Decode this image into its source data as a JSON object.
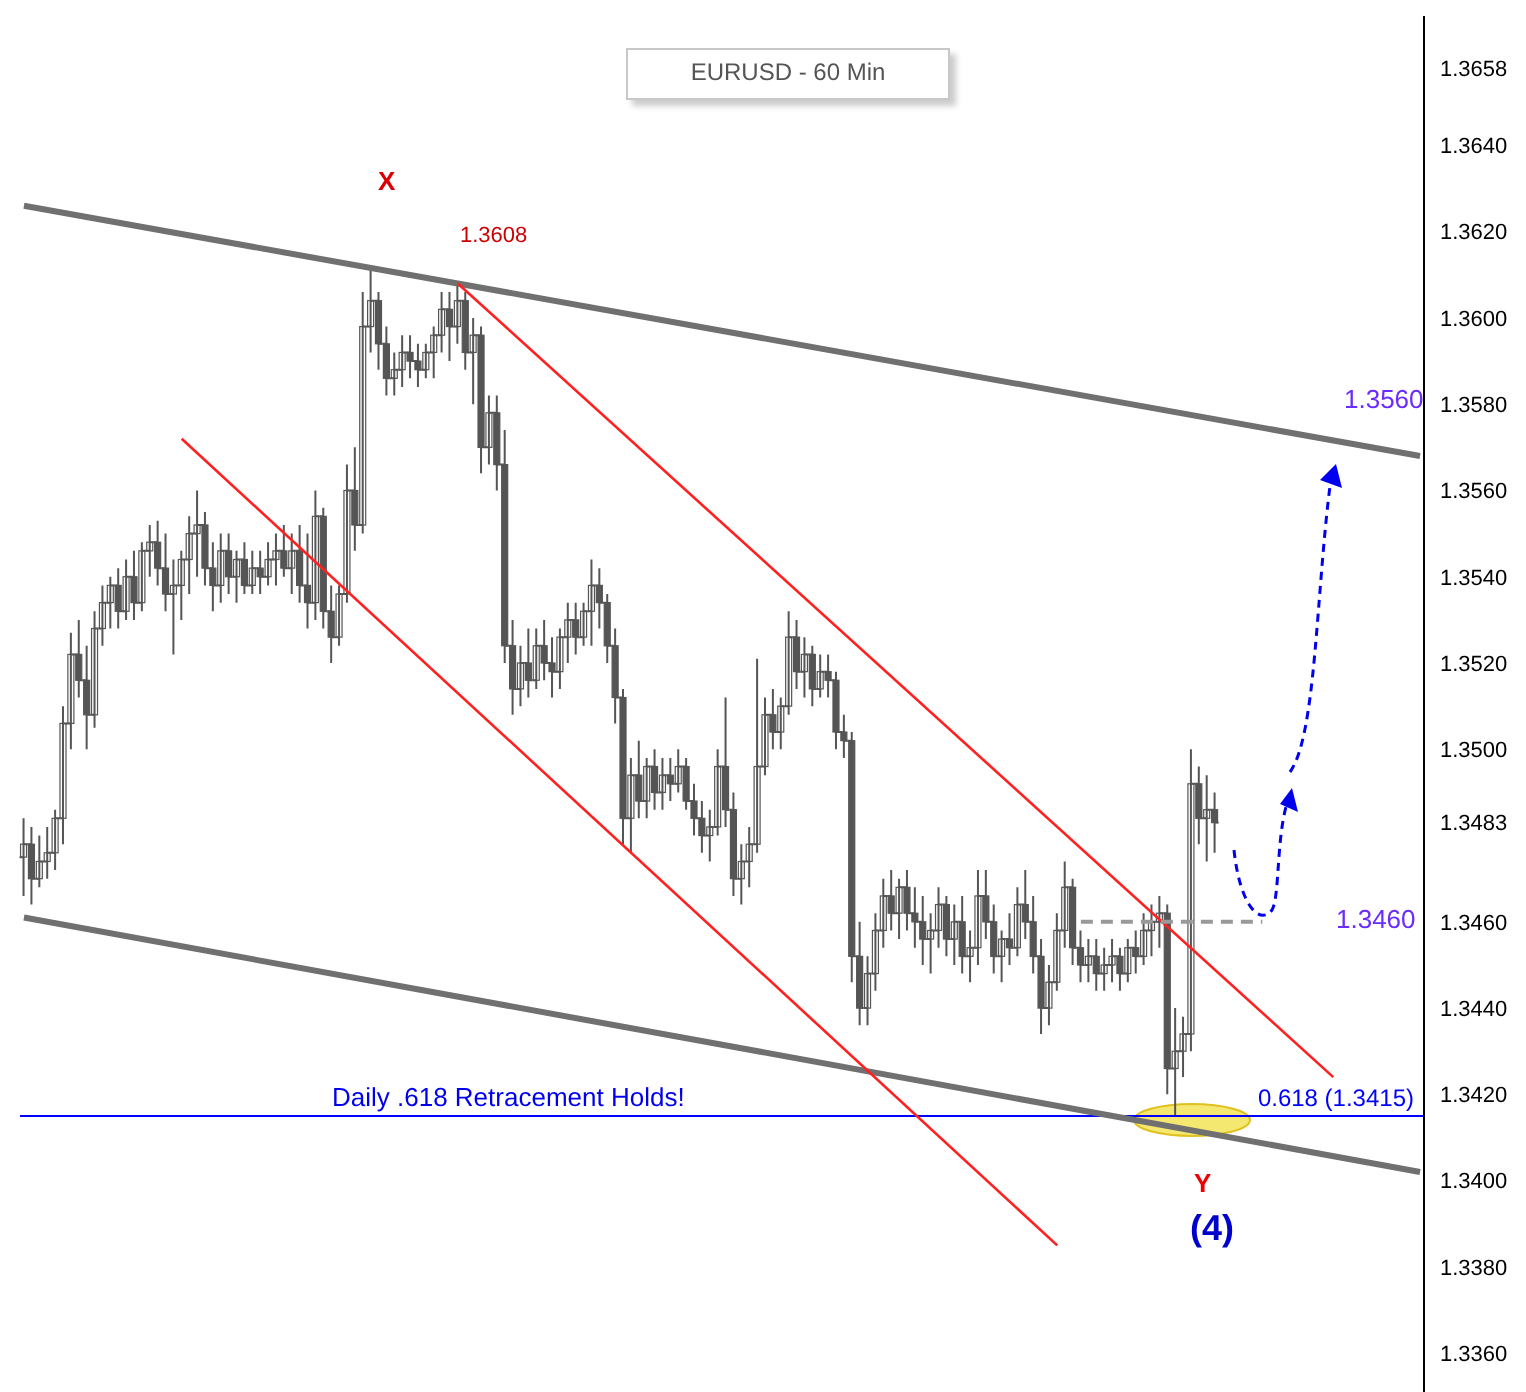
{
  "chart_data": {
    "type": "candlestick",
    "title": "EURUSD - 60 Min",
    "color": "#555555",
    "categories": [
      null,
      null,
      null,
      null,
      null,
      null,
      null,
      null,
      null,
      null,
      null,
      null,
      null,
      null,
      null,
      null,
      null,
      null,
      null,
      null,
      null,
      null,
      null,
      null,
      null,
      null,
      null,
      null,
      null,
      null,
      null,
      null,
      null,
      null,
      null,
      null,
      null,
      null,
      null,
      null,
      null,
      null,
      null,
      null,
      null,
      null,
      null,
      null,
      null,
      null,
      null,
      null,
      null,
      null,
      null,
      null,
      null,
      null,
      null,
      null,
      null,
      null,
      null,
      null,
      null,
      null,
      null,
      null,
      null,
      null,
      null,
      null,
      null,
      null,
      null,
      null,
      null,
      null,
      null,
      null,
      null,
      null,
      null,
      null,
      null,
      null,
      null,
      null,
      null,
      null,
      null,
      null,
      null,
      null,
      null,
      null,
      null,
      null,
      null,
      null,
      null,
      null,
      null,
      null,
      null,
      null,
      null,
      null,
      null,
      null,
      null,
      null,
      null,
      null,
      null,
      null,
      null,
      null,
      null,
      null,
      null,
      null,
      null,
      null,
      null,
      null,
      null,
      null,
      null,
      null,
      null,
      null,
      null,
      null,
      null,
      null,
      null,
      null,
      null,
      null,
      null,
      null,
      null,
      null,
      null,
      null,
      null,
      null,
      null,
      null,
      null,
      null,
      null,
      null,
      null,
      null,
      null,
      null,
      null,
      null,
      null,
      null,
      null,
      null,
      null,
      null,
      null,
      null,
      null,
      null,
      null,
      null,
      null,
      null,
      null,
      null,
      null,
      null
    ],
    "ohlc": [
      [
        1.3475,
        1.3484,
        1.3466,
        1.3478
      ],
      [
        1.3478,
        1.3482,
        1.3464,
        1.347
      ],
      [
        1.347,
        1.348,
        1.3468,
        1.3474
      ],
      [
        1.3474,
        1.3482,
        1.347,
        1.3476
      ],
      [
        1.3476,
        1.3486,
        1.3472,
        1.3484
      ],
      [
        1.3484,
        1.351,
        1.3478,
        1.3506
      ],
      [
        1.3506,
        1.3527,
        1.35,
        1.3522
      ],
      [
        1.3522,
        1.353,
        1.3512,
        1.3516
      ],
      [
        1.3516,
        1.3524,
        1.35,
        1.3508
      ],
      [
        1.3508,
        1.3532,
        1.3505,
        1.3528
      ],
      [
        1.3528,
        1.3538,
        1.3524,
        1.3534
      ],
      [
        1.3534,
        1.354,
        1.3528,
        1.3538
      ],
      [
        1.3538,
        1.3542,
        1.3528,
        1.3532
      ],
      [
        1.3532,
        1.3544,
        1.353,
        1.354
      ],
      [
        1.354,
        1.3546,
        1.353,
        1.3534
      ],
      [
        1.3534,
        1.3548,
        1.3532,
        1.3546
      ],
      [
        1.3546,
        1.3552,
        1.354,
        1.3548
      ],
      [
        1.3548,
        1.3553,
        1.3538,
        1.3542
      ],
      [
        1.3542,
        1.355,
        1.3532,
        1.3536
      ],
      [
        1.3536,
        1.3544,
        1.3522,
        1.3538
      ],
      [
        1.3538,
        1.3546,
        1.353,
        1.3544
      ],
      [
        1.3544,
        1.3554,
        1.3536,
        1.355
      ],
      [
        1.355,
        1.356,
        1.354,
        1.3552
      ],
      [
        1.3552,
        1.3555,
        1.3538,
        1.3542
      ],
      [
        1.3542,
        1.3548,
        1.3532,
        1.3538
      ],
      [
        1.3538,
        1.355,
        1.3534,
        1.3546
      ],
      [
        1.3546,
        1.355,
        1.3536,
        1.354
      ],
      [
        1.354,
        1.3546,
        1.3534,
        1.3544
      ],
      [
        1.3544,
        1.3548,
        1.3536,
        1.3538
      ],
      [
        1.3538,
        1.3546,
        1.3536,
        1.3542
      ],
      [
        1.3542,
        1.3546,
        1.3536,
        1.354
      ],
      [
        1.354,
        1.3548,
        1.3538,
        1.3544
      ],
      [
        1.3544,
        1.355,
        1.3538,
        1.3546
      ],
      [
        1.3546,
        1.3552,
        1.354,
        1.3542
      ],
      [
        1.3542,
        1.355,
        1.3536,
        1.3546
      ],
      [
        1.3546,
        1.3552,
        1.3534,
        1.3538
      ],
      [
        1.3538,
        1.355,
        1.3528,
        1.3534
      ],
      [
        1.3534,
        1.356,
        1.353,
        1.3554
      ],
      [
        1.3554,
        1.3556,
        1.3528,
        1.3532
      ],
      [
        1.3532,
        1.3538,
        1.352,
        1.3526
      ],
      [
        1.3526,
        1.3538,
        1.3524,
        1.3536
      ],
      [
        1.3536,
        1.3566,
        1.3534,
        1.356
      ],
      [
        1.356,
        1.357,
        1.3546,
        1.3552
      ],
      [
        1.3552,
        1.3606,
        1.355,
        1.3598
      ],
      [
        1.3598,
        1.3611,
        1.3592,
        1.3604
      ],
      [
        1.3604,
        1.3606,
        1.3588,
        1.3594
      ],
      [
        1.3594,
        1.3598,
        1.3582,
        1.3586
      ],
      [
        1.3586,
        1.3592,
        1.3582,
        1.3588
      ],
      [
        1.3588,
        1.3596,
        1.3584,
        1.3592
      ],
      [
        1.3592,
        1.3596,
        1.3586,
        1.359
      ],
      [
        1.359,
        1.3594,
        1.3584,
        1.3588
      ],
      [
        1.3588,
        1.3594,
        1.3586,
        1.3592
      ],
      [
        1.3592,
        1.3598,
        1.3586,
        1.3596
      ],
      [
        1.3596,
        1.3606,
        1.3592,
        1.3602
      ],
      [
        1.3602,
        1.3606,
        1.359,
        1.3598
      ],
      [
        1.3598,
        1.3608,
        1.3594,
        1.3604
      ],
      [
        1.3604,
        1.3606,
        1.3588,
        1.3592
      ],
      [
        1.3592,
        1.36,
        1.358,
        1.3596
      ],
      [
        1.3596,
        1.3598,
        1.3564,
        1.357
      ],
      [
        1.357,
        1.3582,
        1.3566,
        1.3578
      ],
      [
        1.3578,
        1.3582,
        1.356,
        1.3566
      ],
      [
        1.3566,
        1.3574,
        1.352,
        1.3524
      ],
      [
        1.3524,
        1.353,
        1.3508,
        1.3514
      ],
      [
        1.3514,
        1.3524,
        1.351,
        1.352
      ],
      [
        1.352,
        1.3528,
        1.3512,
        1.3516
      ],
      [
        1.3516,
        1.3528,
        1.3514,
        1.3524
      ],
      [
        1.3524,
        1.353,
        1.3516,
        1.352
      ],
      [
        1.352,
        1.3526,
        1.3512,
        1.3518
      ],
      [
        1.3518,
        1.3528,
        1.3514,
        1.3526
      ],
      [
        1.3526,
        1.3534,
        1.352,
        1.353
      ],
      [
        1.353,
        1.3534,
        1.3522,
        1.3526
      ],
      [
        1.3526,
        1.3534,
        1.3524,
        1.3532
      ],
      [
        1.3532,
        1.3544,
        1.3524,
        1.3538
      ],
      [
        1.3538,
        1.3542,
        1.3528,
        1.3534
      ],
      [
        1.3534,
        1.3536,
        1.352,
        1.3524
      ],
      [
        1.3524,
        1.3528,
        1.3506,
        1.3512
      ],
      [
        1.3512,
        1.3514,
        1.3478,
        1.3484
      ],
      [
        1.3484,
        1.3498,
        1.3476,
        1.3494
      ],
      [
        1.3494,
        1.3502,
        1.3484,
        1.3488
      ],
      [
        1.3488,
        1.3498,
        1.3484,
        1.3496
      ],
      [
        1.3496,
        1.35,
        1.3486,
        1.349
      ],
      [
        1.349,
        1.3498,
        1.3486,
        1.3494
      ],
      [
        1.3494,
        1.3498,
        1.3488,
        1.3492
      ],
      [
        1.3492,
        1.35,
        1.349,
        1.3496
      ],
      [
        1.3496,
        1.3498,
        1.3486,
        1.3488
      ],
      [
        1.3488,
        1.3492,
        1.348,
        1.3484
      ],
      [
        1.3484,
        1.3488,
        1.3476,
        1.348
      ],
      [
        1.348,
        1.3486,
        1.3474,
        1.3482
      ],
      [
        1.3482,
        1.35,
        1.348,
        1.3496
      ],
      [
        1.3496,
        1.3512,
        1.3482,
        1.3486
      ],
      [
        1.3486,
        1.349,
        1.3466,
        1.347
      ],
      [
        1.347,
        1.3478,
        1.3464,
        1.3474
      ],
      [
        1.3474,
        1.3482,
        1.3468,
        1.3478
      ],
      [
        1.3478,
        1.3521,
        1.3476,
        1.3496
      ],
      [
        1.3496,
        1.3512,
        1.3494,
        1.3508
      ],
      [
        1.3508,
        1.3514,
        1.35,
        1.3504
      ],
      [
        1.3504,
        1.3512,
        1.35,
        1.351
      ],
      [
        1.351,
        1.3532,
        1.3508,
        1.3526
      ],
      [
        1.3526,
        1.353,
        1.3514,
        1.3518
      ],
      [
        1.3518,
        1.3526,
        1.3512,
        1.3522
      ],
      [
        1.3522,
        1.3524,
        1.351,
        1.3514
      ],
      [
        1.3514,
        1.3522,
        1.3512,
        1.3518
      ],
      [
        1.3518,
        1.3522,
        1.3512,
        1.3516
      ],
      [
        1.3516,
        1.3518,
        1.35,
        1.3504
      ],
      [
        1.3504,
        1.3508,
        1.3498,
        1.3502
      ],
      [
        1.3502,
        1.3504,
        1.3446,
        1.3452
      ],
      [
        1.3452,
        1.346,
        1.3436,
        1.344
      ],
      [
        1.344,
        1.3452,
        1.3436,
        1.3448
      ],
      [
        1.3448,
        1.3462,
        1.3444,
        1.3458
      ],
      [
        1.3458,
        1.347,
        1.3454,
        1.3466
      ],
      [
        1.3466,
        1.3472,
        1.3458,
        1.3462
      ],
      [
        1.3462,
        1.347,
        1.3456,
        1.3468
      ],
      [
        1.3468,
        1.3472,
        1.3458,
        1.3462
      ],
      [
        1.3462,
        1.3468,
        1.3454,
        1.346
      ],
      [
        1.346,
        1.3466,
        1.345,
        1.3456
      ],
      [
        1.3456,
        1.3462,
        1.3448,
        1.3458
      ],
      [
        1.3458,
        1.3468,
        1.3454,
        1.3464
      ],
      [
        1.3464,
        1.3466,
        1.3452,
        1.3456
      ],
      [
        1.3456,
        1.3464,
        1.345,
        1.346
      ],
      [
        1.346,
        1.3466,
        1.3448,
        1.3452
      ],
      [
        1.3452,
        1.3458,
        1.3446,
        1.3454
      ],
      [
        1.3454,
        1.3472,
        1.345,
        1.3466
      ],
      [
        1.3466,
        1.3472,
        1.3456,
        1.346
      ],
      [
        1.346,
        1.3464,
        1.3448,
        1.3452
      ],
      [
        1.3452,
        1.3458,
        1.3446,
        1.3456
      ],
      [
        1.3456,
        1.3462,
        1.345,
        1.3454
      ],
      [
        1.3454,
        1.3468,
        1.3452,
        1.3464
      ],
      [
        1.3464,
        1.3472,
        1.3456,
        1.346
      ],
      [
        1.346,
        1.3466,
        1.3448,
        1.3452
      ],
      [
        1.3452,
        1.3456,
        1.3434,
        1.344
      ],
      [
        1.344,
        1.345,
        1.3436,
        1.3446
      ],
      [
        1.3446,
        1.3462,
        1.3444,
        1.3458
      ],
      [
        1.3458,
        1.3474,
        1.3454,
        1.3468
      ],
      [
        1.3468,
        1.347,
        1.345,
        1.3454
      ],
      [
        1.3454,
        1.3458,
        1.3446,
        1.345
      ],
      [
        1.345,
        1.3456,
        1.3446,
        1.3452
      ],
      [
        1.3452,
        1.3456,
        1.3444,
        1.3448
      ],
      [
        1.3448,
        1.3454,
        1.3444,
        1.345
      ],
      [
        1.345,
        1.3456,
        1.3446,
        1.3452
      ],
      [
        1.3452,
        1.3454,
        1.3444,
        1.3448
      ],
      [
        1.3448,
        1.3456,
        1.3446,
        1.3454
      ],
      [
        1.3454,
        1.3458,
        1.3448,
        1.3452
      ],
      [
        1.3452,
        1.3462,
        1.345,
        1.3458
      ],
      [
        1.3458,
        1.3464,
        1.3452,
        1.346
      ],
      [
        1.346,
        1.3466,
        1.3454,
        1.3462
      ],
      [
        1.3462,
        1.3464,
        1.342,
        1.3426
      ],
      [
        1.3426,
        1.344,
        1.3415,
        1.343
      ],
      [
        1.343,
        1.3438,
        1.3424,
        1.3434
      ],
      [
        1.3434,
        1.35,
        1.343,
        1.3492
      ],
      [
        1.3492,
        1.3496,
        1.3478,
        1.3484
      ],
      [
        1.3484,
        1.3494,
        1.3474,
        1.3486
      ],
      [
        1.3486,
        1.349,
        1.3476,
        1.3483
      ],
      null,
      null,
      null,
      null,
      null,
      null,
      null,
      null,
      null,
      null,
      null,
      null,
      null,
      null,
      null,
      null,
      null,
      null,
      null,
      null,
      null,
      null,
      null,
      null,
      null,
      null
    ],
    "series": [
      {
        "type": "line",
        "color": "#707070",
        "values": [
          1.3626,
          null,
          null,
          null,
          null,
          null,
          null,
          null,
          null,
          null,
          null,
          null,
          null,
          null,
          null,
          null,
          null,
          null,
          null,
          null,
          null,
          null,
          null,
          null,
          null,
          null,
          null,
          null,
          null,
          null,
          null,
          null,
          null,
          null,
          null,
          null,
          null,
          null,
          null,
          null,
          null,
          null,
          null,
          null,
          null,
          null,
          null,
          null,
          null,
          null,
          null,
          null,
          null,
          null,
          null,
          null,
          null,
          null,
          null,
          null,
          null,
          null,
          null,
          null,
          null,
          null,
          null,
          null,
          null,
          null,
          null,
          null,
          null,
          null,
          null,
          null,
          null,
          null,
          null,
          null,
          null,
          null,
          null,
          null,
          null,
          null,
          null,
          null,
          null,
          null,
          null,
          null,
          null,
          null,
          null,
          null,
          null,
          null,
          null,
          null,
          null,
          null,
          null,
          null,
          null,
          null,
          null,
          null,
          null,
          null,
          null,
          null,
          null,
          null,
          null,
          null,
          null,
          null,
          null,
          null,
          null,
          null,
          null,
          null,
          null,
          null,
          null,
          null,
          null,
          null,
          null,
          null,
          null,
          null,
          null,
          null,
          null,
          null,
          null,
          null,
          null,
          null,
          null,
          null,
          null,
          null,
          null,
          null,
          null,
          null,
          null,
          null,
          null,
          null,
          null,
          null,
          null,
          null,
          null,
          null,
          null,
          null,
          null,
          null,
          null,
          null,
          null,
          null,
          null,
          null,
          null,
          null,
          null,
          null,
          null,
          null,
          null,
          1.3568
        ]
      },
      {
        "type": "line",
        "color": "#707070",
        "values": [
          1.3461,
          null,
          null,
          null,
          null,
          null,
          null,
          null,
          null,
          null,
          null,
          null,
          null,
          null,
          null,
          null,
          null,
          null,
          null,
          null,
          null,
          null,
          null,
          null,
          null,
          null,
          null,
          null,
          null,
          null,
          null,
          null,
          null,
          null,
          null,
          null,
          null,
          null,
          null,
          null,
          null,
          null,
          null,
          null,
          null,
          null,
          null,
          null,
          null,
          null,
          null,
          null,
          null,
          null,
          null,
          null,
          null,
          null,
          null,
          null,
          null,
          null,
          null,
          null,
          null,
          null,
          null,
          null,
          null,
          null,
          null,
          null,
          null,
          null,
          null,
          null,
          null,
          null,
          null,
          null,
          null,
          null,
          null,
          null,
          null,
          null,
          null,
          null,
          null,
          null,
          null,
          null,
          null,
          null,
          null,
          null,
          null,
          null,
          null,
          null,
          null,
          null,
          null,
          null,
          null,
          null,
          null,
          null,
          null,
          null,
          null,
          null,
          null,
          null,
          null,
          null,
          null,
          null,
          null,
          null,
          null,
          null,
          null,
          null,
          null,
          null,
          null,
          null,
          null,
          null,
          null,
          null,
          null,
          null,
          null,
          null,
          null,
          null,
          null,
          null,
          null,
          null,
          null,
          null,
          null,
          null,
          null,
          null,
          null,
          null,
          null,
          null,
          null,
          null,
          null,
          null,
          null,
          null,
          null,
          null,
          null,
          null,
          null,
          null,
          null,
          null,
          null,
          null,
          null,
          null,
          null,
          null,
          null,
          null,
          null,
          null,
          null,
          1.3402
        ]
      },
      {
        "type": "line",
        "color": "#ff2020",
        "values": [
          null,
          null,
          null,
          null,
          null,
          null,
          null,
          null,
          null,
          null,
          null,
          null,
          null,
          null,
          null,
          null,
          null,
          null,
          null,
          null,
          null,
          null,
          null,
          null,
          null,
          null,
          null,
          null,
          null,
          null,
          null,
          null,
          null,
          null,
          null,
          null,
          null,
          null,
          null,
          null,
          null,
          null,
          null,
          null,
          null,
          null,
          null,
          null,
          null,
          null,
          null,
          null,
          null,
          null,
          null,
          1.3608,
          null,
          null,
          null,
          null,
          null,
          null,
          null,
          null,
          null,
          null,
          null,
          null,
          null,
          null,
          null,
          null,
          null,
          null,
          null,
          null,
          null,
          null,
          null,
          null,
          null,
          null,
          null,
          null,
          null,
          null,
          null,
          null,
          null,
          null,
          null,
          null,
          null,
          null,
          null,
          null,
          null,
          null,
          null,
          null,
          null,
          null,
          null,
          null,
          null,
          null,
          null,
          null,
          null,
          null,
          null,
          null,
          null,
          null,
          null,
          null,
          null,
          null,
          null,
          null,
          null,
          null,
          null,
          null,
          null,
          null,
          null,
          null,
          null,
          null,
          null,
          null,
          null,
          null,
          null,
          null,
          null,
          null,
          null,
          null,
          null,
          null,
          null,
          null,
          null,
          null,
          null,
          null,
          null,
          null,
          null,
          null,
          null,
          null,
          null,
          null,
          null,
          null,
          null,
          null,
          null,
          null,
          null,
          null,
          null,
          null,
          1.3424,
          null,
          null,
          null,
          null,
          null,
          null,
          null,
          null,
          null,
          null,
          null
        ]
      },
      {
        "type": "line",
        "color": "#ff2020",
        "values": [
          null,
          null,
          null,
          null,
          null,
          null,
          null,
          null,
          null,
          null,
          null,
          null,
          null,
          null,
          null,
          null,
          null,
          null,
          null,
          null,
          1.3572,
          null,
          null,
          null,
          null,
          null,
          null,
          null,
          null,
          null,
          null,
          null,
          null,
          null,
          null,
          null,
          null,
          null,
          null,
          null,
          null,
          null,
          null,
          null,
          null,
          null,
          null,
          null,
          null,
          null,
          null,
          null,
          null,
          null,
          null,
          null,
          null,
          null,
          null,
          null,
          null,
          null,
          null,
          null,
          null,
          null,
          null,
          null,
          null,
          null,
          null,
          null,
          null,
          null,
          null,
          null,
          null,
          null,
          null,
          null,
          null,
          null,
          null,
          null,
          null,
          null,
          null,
          null,
          null,
          null,
          null,
          null,
          null,
          null,
          null,
          null,
          null,
          null,
          null,
          null,
          null,
          null,
          null,
          null,
          null,
          null,
          null,
          null,
          null,
          null,
          null,
          null,
          null,
          null,
          null,
          null,
          null,
          null,
          null,
          null,
          null,
          null,
          null,
          null,
          null,
          null,
          null,
          null,
          null,
          null,
          null,
          1.3385,
          null,
          null,
          null,
          null,
          null,
          null,
          null,
          null,
          null,
          null,
          null,
          null,
          null,
          null,
          null,
          null,
          null,
          null,
          null,
          null,
          null,
          null,
          null,
          null,
          null,
          null,
          null,
          null,
          null,
          null,
          null,
          null,
          null,
          null,
          null,
          null,
          null,
          null,
          null,
          null,
          null,
          null,
          null,
          null,
          null,
          null
        ]
      },
      {
        "type": "line",
        "color": "#999999",
        "line_style": "dashed",
        "values": [
          null,
          null,
          null,
          null,
          null,
          null,
          null,
          null,
          null,
          null,
          null,
          null,
          null,
          null,
          null,
          null,
          null,
          null,
          null,
          null,
          null,
          null,
          null,
          null,
          null,
          null,
          null,
          null,
          null,
          null,
          null,
          null,
          null,
          null,
          null,
          null,
          null,
          null,
          null,
          null,
          null,
          null,
          null,
          null,
          null,
          null,
          null,
          null,
          null,
          null,
          null,
          null,
          null,
          null,
          null,
          null,
          null,
          null,
          null,
          null,
          null,
          null,
          null,
          null,
          null,
          null,
          null,
          null,
          null,
          null,
          null,
          null,
          null,
          null,
          null,
          null,
          null,
          null,
          null,
          null,
          null,
          null,
          null,
          null,
          null,
          null,
          null,
          null,
          null,
          null,
          null,
          null,
          null,
          null,
          null,
          null,
          null,
          null,
          null,
          null,
          null,
          null,
          null,
          null,
          null,
          null,
          null,
          null,
          null,
          null,
          null,
          null,
          null,
          null,
          null,
          null,
          null,
          null,
          null,
          null,
          null,
          null,
          null,
          null,
          null,
          null,
          null,
          null,
          null,
          null,
          null,
          null,
          null,
          null,
          1.346,
          null,
          null,
          null,
          null,
          null,
          null,
          null,
          null,
          null,
          null,
          null,
          null,
          null,
          null,
          null,
          null,
          null,
          null,
          null,
          null,
          null,
          null,
          1.346,
          null,
          null,
          null,
          null,
          null,
          null,
          null,
          null,
          null,
          null,
          null,
          null,
          null,
          null,
          null,
          null,
          null,
          null,
          null,
          null
        ]
      }
    ],
    "ylim": [
      1.3351,
      1.367
    ],
    "yticks": [
      1.3658,
      {
        "value": 1.364,
        "label": "1.3640"
      },
      {
        "value": 1.362,
        "label": "1.3620"
      },
      {
        "value": 1.36,
        "label": "1.3600"
      },
      {
        "value": 1.358,
        "label": "1.3580"
      },
      {
        "value": 1.356,
        "label": "1.3560"
      },
      {
        "value": 1.354,
        "label": "1.3540"
      },
      {
        "value": 1.352,
        "label": "1.3520"
      },
      {
        "value": 1.35,
        "label": "1.3500"
      },
      1.3483,
      {
        "value": 1.346,
        "label": "1.3460"
      },
      {
        "value": 1.344,
        "label": "1.3440"
      },
      {
        "value": 1.342,
        "label": "1.3420"
      },
      {
        "value": 1.34,
        "label": "1.3400"
      },
      {
        "value": 1.338,
        "label": "1.3380"
      },
      {
        "value": 1.336,
        "label": "1.3360"
      }
    ],
    "tick_labels": "y",
    "ref_lines": [
      {
        "axis": "y",
        "value": 1.3415,
        "label": "0.618 (1.3415)",
        "color": "#0000ff"
      }
    ],
    "annotations": [
      "X",
      {
        "text": "1.3608",
        "y": 1.3608
      },
      "1.3560",
      "1.3460",
      "Daily .618 Retracement Holds!",
      "Y",
      "(4)"
    ]
  }
}
